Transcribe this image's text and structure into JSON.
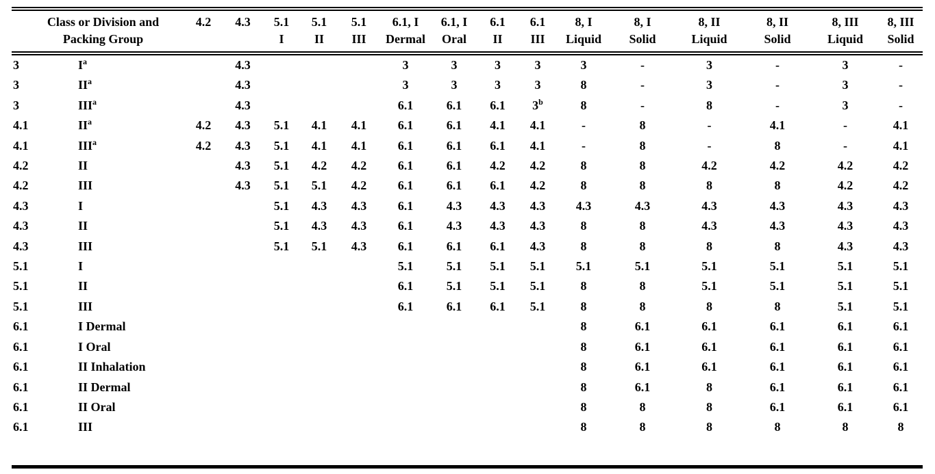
{
  "colors": {
    "background": "#ffffff",
    "text": "#000000",
    "rule": "#000000"
  },
  "table": {
    "header": {
      "row_label_line1": "Class or Division and",
      "row_label_line2": "Packing Group",
      "columns": [
        {
          "line1": "4.2",
          "line2": ""
        },
        {
          "line1": "4.3",
          "line2": ""
        },
        {
          "line1": "5.1",
          "line2": "I"
        },
        {
          "line1": "5.1",
          "line2": "II"
        },
        {
          "line1": "5.1",
          "line2": "III"
        },
        {
          "line1": "6.1, I",
          "line2": "Dermal"
        },
        {
          "line1": "6.1, I",
          "line2": "Oral"
        },
        {
          "line1": "6.1",
          "line2": "II"
        },
        {
          "line1": "6.1",
          "line2": "III"
        },
        {
          "line1": "8, I",
          "line2": "Liquid"
        },
        {
          "line1": "8, I",
          "line2": "Solid"
        },
        {
          "line1": "8, II",
          "line2": "Liquid"
        },
        {
          "line1": "8, II",
          "line2": "Solid"
        },
        {
          "line1": "8, III",
          "line2": "Liquid"
        },
        {
          "line1": "8, III",
          "line2": "Solid"
        }
      ]
    },
    "rows": [
      {
        "class": "3",
        "pg": "I^a",
        "cells": [
          "",
          "4.3",
          "",
          "",
          "",
          "3",
          "3",
          "3",
          "3",
          "3",
          "-",
          "3",
          "-",
          "3",
          "-"
        ]
      },
      {
        "class": "3",
        "pg": "II^a",
        "cells": [
          "",
          "4.3",
          "",
          "",
          "",
          "3",
          "3",
          "3",
          "3",
          "8",
          "-",
          "3",
          "-",
          "3",
          "-"
        ]
      },
      {
        "class": "3",
        "pg": "III^a",
        "cells": [
          "",
          "4.3",
          "",
          "",
          "",
          "6.1",
          "6.1",
          "6.1",
          "3^b",
          "8",
          "-",
          "8",
          "-",
          "3",
          "-"
        ]
      },
      {
        "class": "4.1",
        "pg": "II^a",
        "cells": [
          "4.2",
          "4.3",
          "5.1",
          "4.1",
          "4.1",
          "6.1",
          "6.1",
          "4.1",
          "4.1",
          "-",
          "8",
          "-",
          "4.1",
          "-",
          "4.1"
        ]
      },
      {
        "class": "4.1",
        "pg": "III^a",
        "cells": [
          "4.2",
          "4.3",
          "5.1",
          "4.1",
          "4.1",
          "6.1",
          "6.1",
          "6.1",
          "4.1",
          "-",
          "8",
          "-",
          "8",
          "-",
          "4.1"
        ]
      },
      {
        "class": "4.2",
        "pg": "II",
        "cells": [
          "",
          "4.3",
          "5.1",
          "4.2",
          "4.2",
          "6.1",
          "6.1",
          "4.2",
          "4.2",
          "8",
          "8",
          "4.2",
          "4.2",
          "4.2",
          "4.2"
        ]
      },
      {
        "class": "4.2",
        "pg": "III",
        "cells": [
          "",
          "4.3",
          "5.1",
          "5.1",
          "4.2",
          "6.1",
          "6.1",
          "6.1",
          "4.2",
          "8",
          "8",
          "8",
          "8",
          "4.2",
          "4.2"
        ]
      },
      {
        "class": "4.3",
        "pg": "I",
        "cells": [
          "",
          "",
          "5.1",
          "4.3",
          "4.3",
          "6.1",
          "4.3",
          "4.3",
          "4.3",
          "4.3",
          "4.3",
          "4.3",
          "4.3",
          "4.3",
          "4.3"
        ]
      },
      {
        "class": "4.3",
        "pg": "II",
        "cells": [
          "",
          "",
          "5.1",
          "4.3",
          "4.3",
          "6.1",
          "4.3",
          "4.3",
          "4.3",
          "8",
          "8",
          "4.3",
          "4.3",
          "4.3",
          "4.3"
        ]
      },
      {
        "class": "4.3",
        "pg": "III",
        "cells": [
          "",
          "",
          "5.1",
          "5.1",
          "4.3",
          "6.1",
          "6.1",
          "6.1",
          "4.3",
          "8",
          "8",
          "8",
          "8",
          "4.3",
          "4.3"
        ]
      },
      {
        "class": "5.1",
        "pg": "I",
        "cells": [
          "",
          "",
          "",
          "",
          "",
          "5.1",
          "5.1",
          "5.1",
          "5.1",
          "5.1",
          "5.1",
          "5.1",
          "5.1",
          "5.1",
          "5.1"
        ]
      },
      {
        "class": "5.1",
        "pg": "II",
        "cells": [
          "",
          "",
          "",
          "",
          "",
          "6.1",
          "5.1",
          "5.1",
          "5.1",
          "8",
          "8",
          "5.1",
          "5.1",
          "5.1",
          "5.1"
        ]
      },
      {
        "class": "5.1",
        "pg": "III",
        "cells": [
          "",
          "",
          "",
          "",
          "",
          "6.1",
          "6.1",
          "6.1",
          "5.1",
          "8",
          "8",
          "8",
          "8",
          "5.1",
          "5.1"
        ]
      },
      {
        "class": "6.1",
        "pg": "I Dermal",
        "cells": [
          "",
          "",
          "",
          "",
          "",
          "",
          "",
          "",
          "",
          "8",
          "6.1",
          "6.1",
          "6.1",
          "6.1",
          "6.1"
        ]
      },
      {
        "class": "6.1",
        "pg": "I Oral",
        "cells": [
          "",
          "",
          "",
          "",
          "",
          "",
          "",
          "",
          "",
          "8",
          "6.1",
          "6.1",
          "6.1",
          "6.1",
          "6.1"
        ]
      },
      {
        "class": "6.1",
        "pg": "II Inhalation",
        "cells": [
          "",
          "",
          "",
          "",
          "",
          "",
          "",
          "",
          "",
          "8",
          "6.1",
          "6.1",
          "6.1",
          "6.1",
          "6.1"
        ]
      },
      {
        "class": "6.1",
        "pg": "II Dermal",
        "cells": [
          "",
          "",
          "",
          "",
          "",
          "",
          "",
          "",
          "",
          "8",
          "6.1",
          "8",
          "6.1",
          "6.1",
          "6.1"
        ]
      },
      {
        "class": "6.1",
        "pg": "II Oral",
        "cells": [
          "",
          "",
          "",
          "",
          "",
          "",
          "",
          "",
          "",
          "8",
          "8",
          "8",
          "6.1",
          "6.1",
          "6.1"
        ]
      },
      {
        "class": "6.1",
        "pg": "III",
        "cells": [
          "",
          "",
          "",
          "",
          "",
          "",
          "",
          "",
          "",
          "8",
          "8",
          "8",
          "8",
          "8",
          "8"
        ]
      }
    ]
  }
}
